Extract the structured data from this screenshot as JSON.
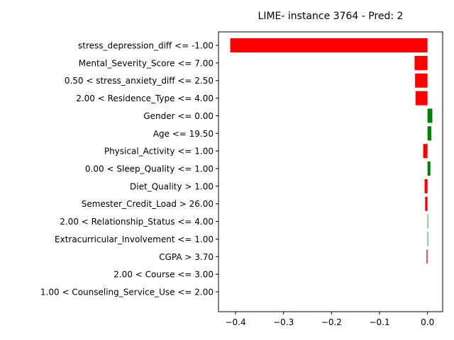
{
  "chart_data": {
    "type": "bar",
    "orientation": "horizontal",
    "title": "LIME- instance 3764 - Pred: 2",
    "xlabel": "",
    "ylabel": "",
    "xlim": [
      -0.4355,
      0.0315
    ],
    "xticks": [
      -0.4,
      -0.3,
      -0.2,
      -0.1,
      0.0
    ],
    "xtick_labels": [
      "−0.4",
      "−0.3",
      "−0.2",
      "−0.1",
      "0.0"
    ],
    "grid": false,
    "legend": "none",
    "positive_color": "#008000",
    "negative_color": "#ff0000",
    "categories": [
      "stress_depression_diff <= -1.00",
      "Mental_Severity_Score <= 7.00",
      "0.50 < stress_anxiety_diff <= 2.50",
      "2.00 < Residence_Type <= 4.00",
      "Gender <= 0.00",
      "Age <= 19.50",
      "Physical_Activity <= 1.00",
      "0.00 < Sleep_Quality <= 1.00",
      "Diet_Quality > 1.00",
      "Semester_Credit_Load > 26.00",
      "2.00 < Relationship_Status <= 4.00",
      "Extracurricular_Involvement <= 1.00",
      "CGPA > 3.70",
      "2.00 < Course <= 3.00",
      "1.00 < Counseling_Service_Use <= 2.00"
    ],
    "values": [
      -0.411,
      -0.027,
      -0.026,
      -0.025,
      0.01,
      0.008,
      -0.009,
      0.006,
      -0.006,
      -0.005,
      0.001,
      0.001,
      -0.002,
      0.0,
      0.0
    ]
  }
}
